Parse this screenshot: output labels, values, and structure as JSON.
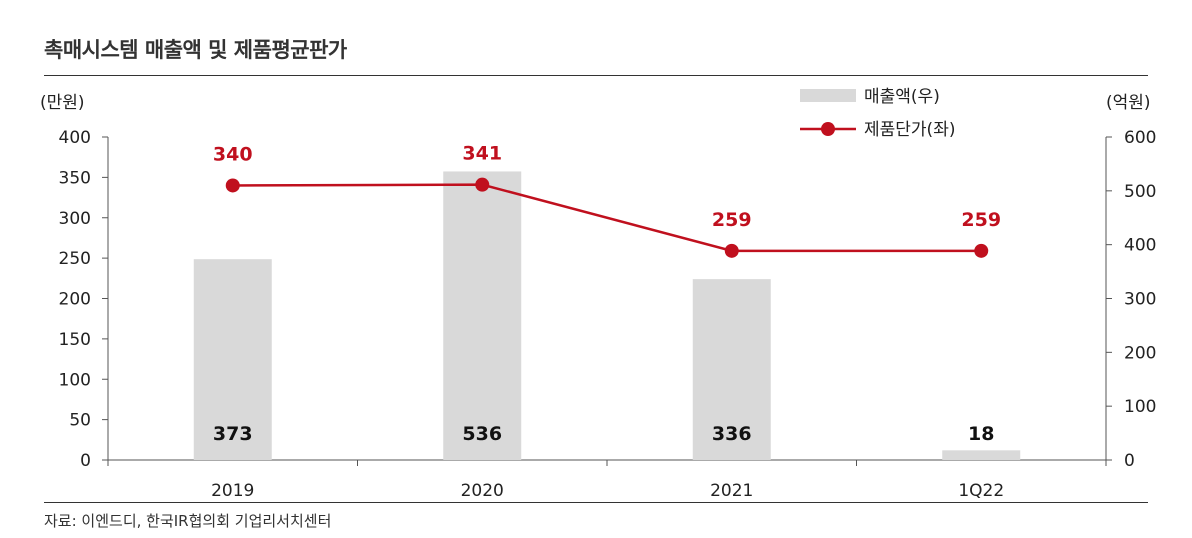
{
  "title": "촉매시스템 매출액 및 제품평균판가",
  "source": "자료: 이엔드디, 한국IR협의회 기업리서치센터",
  "chart_data": {
    "type": "bar+line",
    "categories": [
      "2019",
      "2020",
      "2021",
      "1Q22"
    ],
    "left_axis": {
      "unit": "(만원)",
      "ylim": [
        0,
        400
      ],
      "ticks": [
        0,
        50,
        100,
        150,
        200,
        250,
        300,
        350,
        400
      ]
    },
    "right_axis": {
      "unit": "(억원)",
      "ylim": [
        0,
        600
      ],
      "ticks": [
        0,
        100,
        200,
        300,
        400,
        500,
        600
      ]
    },
    "series": [
      {
        "name": "매출액(우)",
        "type": "bar",
        "axis": "right",
        "values": [
          373,
          536,
          336,
          18
        ],
        "color": "#d9d9d9"
      },
      {
        "name": "제품단가(좌)",
        "type": "line",
        "axis": "left",
        "values": [
          340,
          341,
          259,
          259
        ],
        "color": "#c0101e"
      }
    ],
    "legend_position": "top-right",
    "grid": false
  }
}
